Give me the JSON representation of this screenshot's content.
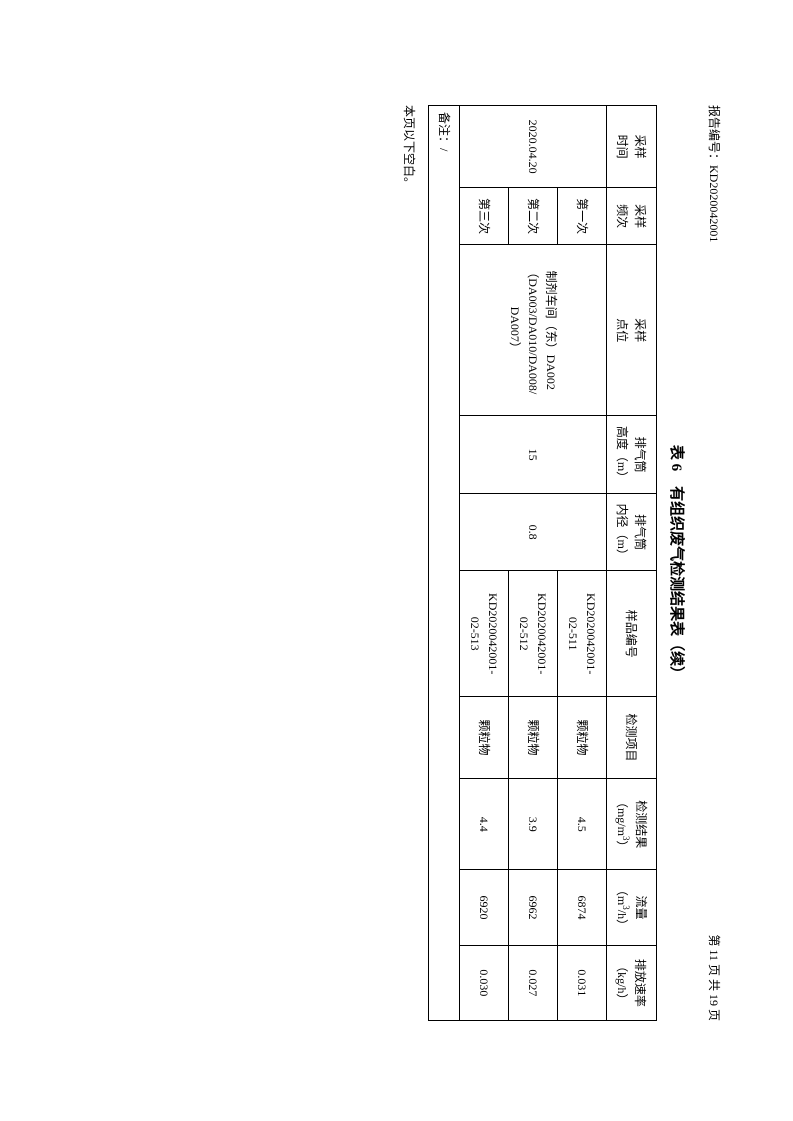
{
  "header": {
    "report_label": "报告编号：",
    "report_number": "KD2020042001",
    "page_info": "第 11 页 共 19 页"
  },
  "table": {
    "title": "表 6　有组织废气检测结果表（续）",
    "columns": {
      "c1": "采样\n时间",
      "c2": "采样\n频次",
      "c3": "采样\n点位",
      "c4": "排气筒\n高度（m）",
      "c5": "排气筒\n内径（m）",
      "c6": "样品编号",
      "c7": "检测项目",
      "c8": "检测结果\n（mg/m³）",
      "c9": "流量\n（m³/h）",
      "c10": "排放速率\n（kg/h）"
    },
    "merged": {
      "date": "2020.04.20",
      "location": "制剂车间（东）DA002\n（DA003/DA010/DA008/\nDA007）",
      "height": "15",
      "diameter": "0.8"
    },
    "rows": [
      {
        "freq": "第一次",
        "sample_id": "KD2020042001-\n02-511",
        "item": "颗粒物",
        "result": "4.5",
        "flow": "6874",
        "rate": "0.031"
      },
      {
        "freq": "第二次",
        "sample_id": "KD2020042001-\n02-512",
        "item": "颗粒物",
        "result": "3.9",
        "flow": "6962",
        "rate": "0.027"
      },
      {
        "freq": "第三次",
        "sample_id": "KD2020042001-\n02-513",
        "item": "颗粒物",
        "result": "4.4",
        "flow": "6920",
        "rate": "0.030"
      }
    ],
    "note": "备注：/"
  },
  "footer": {
    "blank_note": "本页以下空白。"
  }
}
